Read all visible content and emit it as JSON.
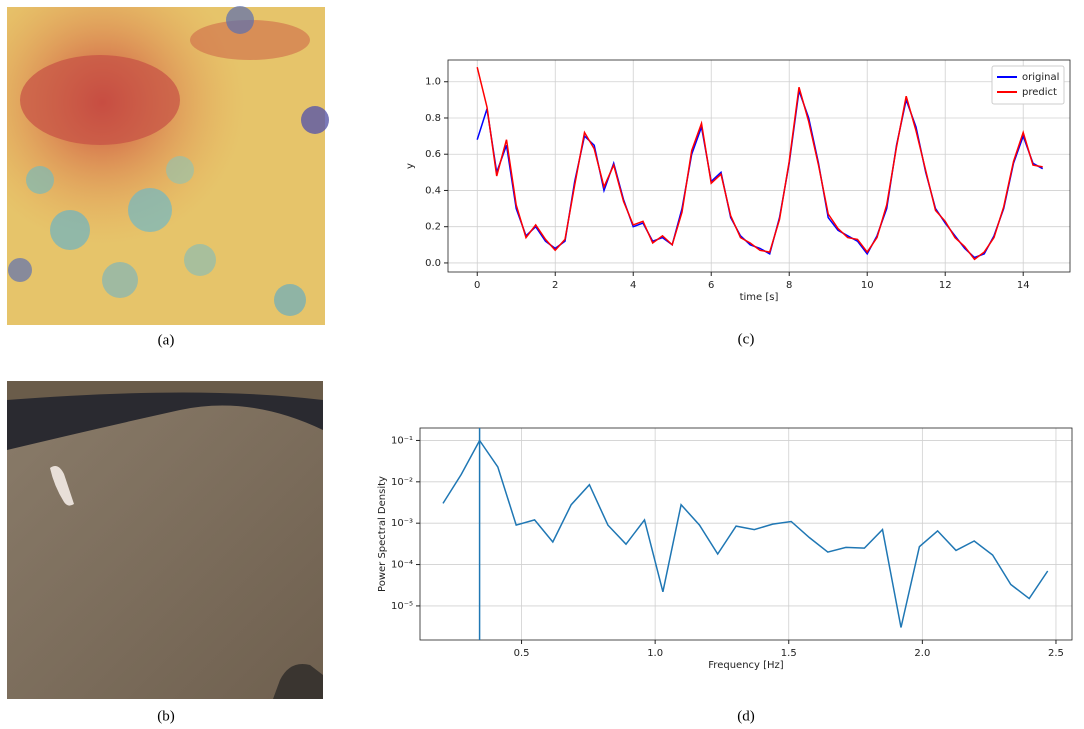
{
  "captions": [
    "(a)",
    "(b)",
    "(c)",
    "(d)"
  ],
  "chart_data": [
    {
      "type": "line",
      "xlabel": "time [s]",
      "ylabel": "y",
      "x": [
        0,
        0.25,
        0.5,
        0.75,
        1,
        1.25,
        1.5,
        1.75,
        2,
        2.25,
        2.5,
        2.75,
        3,
        3.25,
        3.5,
        3.75,
        4,
        4.25,
        4.5,
        4.75,
        5,
        5.25,
        5.5,
        5.75,
        6,
        6.25,
        6.5,
        6.75,
        7,
        7.25,
        7.5,
        7.75,
        8,
        8.25,
        8.5,
        8.75,
        9,
        9.25,
        9.5,
        9.75,
        10,
        10.25,
        10.5,
        10.75,
        11,
        11.25,
        11.5,
        11.75,
        12,
        12.25,
        12.5,
        12.75,
        13,
        13.25,
        13.5,
        13.75,
        14,
        14.25,
        14.5
      ],
      "series": [
        {
          "name": "original",
          "color": "#0000ff",
          "values": [
            0.68,
            0.85,
            0.5,
            0.65,
            0.3,
            0.15,
            0.2,
            0.12,
            0.08,
            0.12,
            0.45,
            0.7,
            0.65,
            0.4,
            0.55,
            0.35,
            0.2,
            0.22,
            0.12,
            0.14,
            0.1,
            0.3,
            0.6,
            0.75,
            0.45,
            0.5,
            0.25,
            0.15,
            0.1,
            0.08,
            0.05,
            0.25,
            0.55,
            0.95,
            0.8,
            0.55,
            0.25,
            0.18,
            0.15,
            0.12,
            0.05,
            0.15,
            0.3,
            0.65,
            0.9,
            0.75,
            0.5,
            0.3,
            0.22,
            0.15,
            0.08,
            0.03,
            0.05,
            0.15,
            0.3,
            0.55,
            0.7,
            0.55,
            0.52
          ]
        },
        {
          "name": "predict",
          "color": "#ff0000",
          "values": [
            1.08,
            0.86,
            0.48,
            0.68,
            0.32,
            0.14,
            0.21,
            0.13,
            0.07,
            0.13,
            0.43,
            0.72,
            0.63,
            0.42,
            0.54,
            0.34,
            0.21,
            0.23,
            0.11,
            0.15,
            0.1,
            0.28,
            0.62,
            0.77,
            0.44,
            0.49,
            0.26,
            0.14,
            0.11,
            0.07,
            0.06,
            0.24,
            0.56,
            0.97,
            0.78,
            0.54,
            0.27,
            0.19,
            0.14,
            0.13,
            0.06,
            0.14,
            0.32,
            0.64,
            0.92,
            0.73,
            0.51,
            0.29,
            0.23,
            0.14,
            0.09,
            0.02,
            0.06,
            0.14,
            0.31,
            0.56,
            0.72,
            0.54,
            0.53
          ]
        }
      ],
      "xlim": [
        -0.75,
        15.2
      ],
      "ylim": [
        -0.05,
        1.12
      ],
      "xticks": [
        0,
        2,
        4,
        6,
        8,
        10,
        12,
        14
      ],
      "yticks": [
        {
          "value": 0,
          "label": "0.0"
        },
        0.2,
        0.4,
        0.6,
        0.8,
        {
          "value": 1,
          "label": "1.0"
        }
      ],
      "grid": true,
      "legend": "upper-right"
    },
    {
      "type": "line",
      "xlabel": "Frequency [Hz]",
      "ylabel": "Power Spectral Density",
      "x": [
        0.206,
        0.274,
        0.343,
        0.411,
        0.48,
        0.549,
        0.617,
        0.686,
        0.754,
        0.823,
        0.891,
        0.96,
        1.029,
        1.097,
        1.166,
        1.234,
        1.303,
        1.371,
        1.44,
        1.509,
        1.577,
        1.646,
        1.714,
        1.783,
        1.851,
        1.92,
        1.989,
        2.057,
        2.126,
        2.194,
        2.263,
        2.331,
        2.4,
        2.469
      ],
      "values": [
        0.003,
        0.015,
        0.1,
        0.023,
        0.0009,
        0.0012,
        0.00035,
        0.0028,
        0.0085,
        0.0009,
        0.00031,
        0.0012,
        2.2e-05,
        0.0028,
        0.0009,
        0.00018,
        0.00085,
        0.0007,
        0.00095,
        0.0011,
        0.00045,
        0.0002,
        0.00026,
        0.00025,
        0.0007,
        3e-06,
        0.00027,
        0.00065,
        0.00022,
        0.00037,
        0.00017,
        3.3e-05,
        1.5e-05,
        7e-05
      ],
      "color": "#1f77b4",
      "vline": 0.343,
      "xlim": [
        0.12,
        2.56
      ],
      "ylim": [
        1.5e-06,
        0.2
      ],
      "log_y": true,
      "xticks": [
        0.5,
        {
          "value": 1,
          "label": "1.0"
        },
        1.5,
        {
          "value": 2,
          "label": "2.0"
        },
        2.5
      ],
      "yticks": [
        {
          "value": 1e-05,
          "label": "10⁻⁵"
        },
        {
          "value": 0.0001,
          "label": "10⁻⁴"
        },
        {
          "value": 0.001,
          "label": "10⁻³"
        },
        {
          "value": 0.01,
          "label": "10⁻²"
        },
        {
          "value": 0.1,
          "label": "10⁻¹"
        }
      ],
      "grid": true
    }
  ]
}
